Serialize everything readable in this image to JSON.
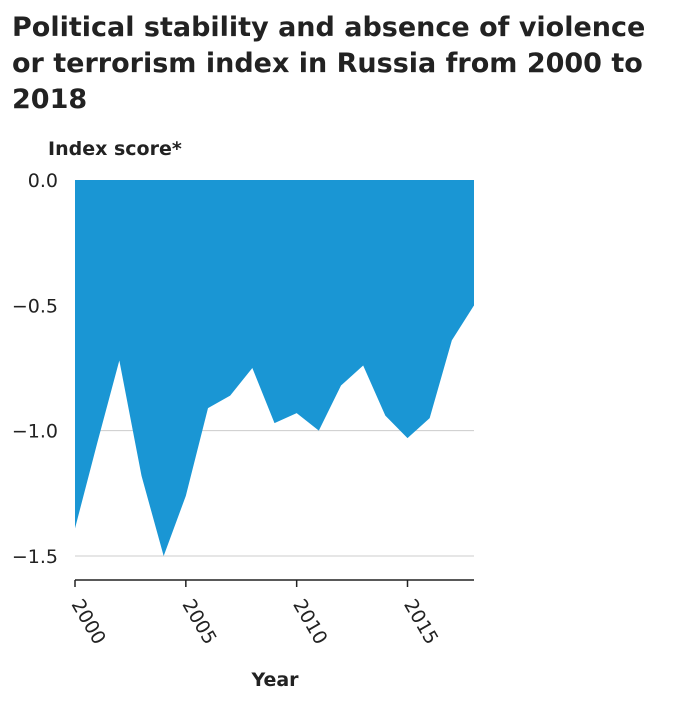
{
  "chart_data": {
    "type": "area",
    "title": "Political stability and absence of violence or terrorism index in Russia from 2000 to 2018",
    "xlabel": "Year",
    "ylabel": "Index score*",
    "xlim": [
      2000,
      2018
    ],
    "ylim": [
      -1.5,
      0.0
    ],
    "x_ticks": [
      2000,
      2005,
      2010,
      2015
    ],
    "y_ticks": [
      0.0,
      -0.5,
      -1.0,
      -1.5
    ],
    "y_tick_labels": [
      "0.0",
      "−0.5",
      "−1.0",
      "−1.5"
    ],
    "grid": "horizontal",
    "baseline": 0.0,
    "color": "#1a96d4",
    "x": [
      2000,
      2001,
      2002,
      2003,
      2004,
      2005,
      2006,
      2007,
      2008,
      2009,
      2010,
      2011,
      2012,
      2013,
      2014,
      2015,
      2016,
      2017,
      2018
    ],
    "values": [
      -1.39,
      -1.05,
      -0.72,
      -1.18,
      -1.5,
      -1.26,
      -0.91,
      -0.86,
      -0.75,
      -0.97,
      -0.93,
      -1.0,
      -0.82,
      -0.74,
      -0.94,
      -1.03,
      -0.95,
      -0.64,
      -0.5
    ]
  }
}
